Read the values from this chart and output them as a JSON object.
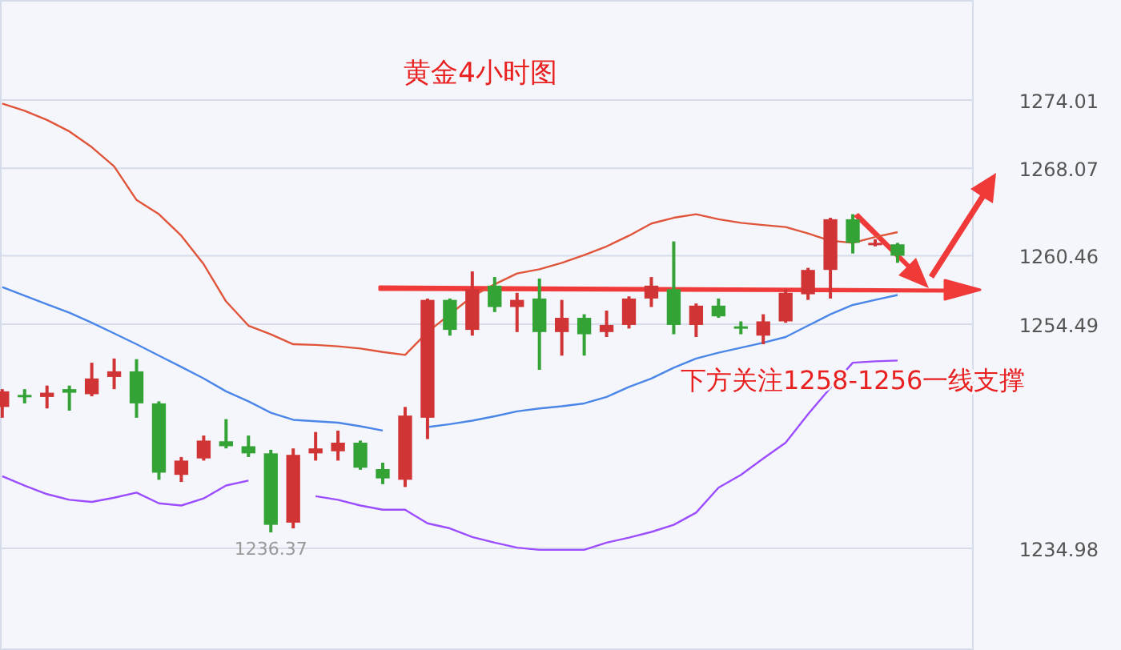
{
  "chart_data": {
    "type": "candlestick",
    "title": "黄金4小时图",
    "annotations": [
      "下方关注1258-1256一线支撑",
      {
        "text": "1236.37",
        "y": 1236.37
      }
    ],
    "categories": [
      null,
      null,
      null,
      null,
      null,
      null,
      null,
      null,
      null,
      null,
      null,
      null,
      null,
      null,
      null,
      null,
      null,
      null,
      null,
      null,
      null,
      null,
      null,
      null,
      null,
      null,
      null,
      null,
      null,
      null,
      null,
      null,
      null,
      null,
      null,
      null,
      null,
      null,
      null,
      null,
      null
    ],
    "ohlc": [
      [
        1247.29,
        1248.84,
        1246.35,
        1248.65
      ],
      [
        1248.34,
        1248.84,
        1247.6,
        1248.16
      ],
      [
        1248.16,
        1249.15,
        1247.16,
        1248.53
      ],
      [
        1248.84,
        1249.15,
        1246.97,
        1248.53
      ],
      [
        1248.4,
        1251.14,
        1248.22,
        1249.77
      ],
      [
        1249.9,
        1251.51,
        1248.84,
        1250.39
      ],
      [
        1250.39,
        1251.45,
        1246.35,
        1247.6
      ],
      [
        1247.6,
        1247.78,
        1240.95,
        1241.57
      ],
      [
        1241.38,
        1242.93,
        1240.76,
        1242.62
      ],
      [
        1242.81,
        1244.8,
        1242.62,
        1244.36
      ],
      [
        1244.3,
        1246.23,
        1243.68,
        1243.87
      ],
      [
        1243.87,
        1244.8,
        1242.93,
        1243.25
      ],
      [
        1243.25,
        1243.56,
        1236.37,
        1237.03
      ],
      [
        1237.22,
        1243.68,
        1236.72,
        1243.12
      ],
      [
        1243.25,
        1245.11,
        1242.62,
        1243.68
      ],
      [
        1243.43,
        1245.23,
        1242.62,
        1244.18
      ],
      [
        1244.18,
        1244.36,
        1241.82,
        1242.0
      ],
      [
        1241.88,
        1242.44,
        1240.57,
        1241.07
      ],
      [
        1240.95,
        1247.29,
        1240.32,
        1246.54
      ],
      [
        1246.35,
        1256.73,
        1244.49,
        1256.61
      ],
      [
        1256.61,
        1256.73,
        1253.5,
        1254.0
      ],
      [
        1254.0,
        1259.09,
        1253.5,
        1257.54
      ],
      [
        1257.85,
        1258.6,
        1255.55,
        1255.99
      ],
      [
        1255.99,
        1257.23,
        1253.81,
        1256.61
      ],
      [
        1256.73,
        1258.47,
        1250.52,
        1253.81
      ],
      [
        1253.81,
        1256.61,
        1251.76,
        1255.05
      ],
      [
        1255.05,
        1255.36,
        1251.76,
        1253.62
      ],
      [
        1253.81,
        1255.68,
        1253.38,
        1254.43
      ],
      [
        1254.43,
        1256.92,
        1254.12,
        1256.73
      ],
      [
        1256.73,
        1258.6,
        1255.99,
        1257.85
      ],
      [
        1257.54,
        1261.7,
        1253.62,
        1254.43
      ],
      [
        1254.43,
        1256.3,
        1253.38,
        1256.11
      ],
      [
        1256.11,
        1256.73,
        1255.05,
        1255.18
      ],
      [
        1254.31,
        1254.74,
        1253.62,
        1254.12
      ],
      [
        1253.5,
        1255.36,
        1252.75,
        1254.74
      ],
      [
        1254.74,
        1257.54,
        1254.62,
        1257.23
      ],
      [
        1257.1,
        1259.4,
        1256.61,
        1259.22
      ],
      [
        1259.22,
        1263.76,
        1256.73,
        1263.63
      ],
      [
        1263.63,
        1264.07,
        1260.65,
        1261.58
      ],
      [
        1261.45,
        1261.89,
        1261.27,
        1261.58
      ],
      [
        1261.45,
        1261.58,
        1259.84,
        1260.46
      ]
    ],
    "series": [
      {
        "type": "line",
        "color": "#e0543a",
        "values": [
          1273.7,
          1273.08,
          1272.27,
          1271.28,
          1269.91,
          1268.23,
          1265.31,
          1264.07,
          1262.2,
          1259.72,
          1256.48,
          1254.37,
          1253.62,
          1252.75,
          1252.69,
          1252.57,
          1252.38,
          1252.07,
          1251.82,
          1253.81,
          1255.36,
          1256.92,
          1257.97,
          1258.91,
          1259.28,
          1259.84,
          1260.52,
          1261.27,
          1262.2,
          1263.26,
          1263.76,
          1264.07,
          1263.63,
          1263.32,
          1263.13,
          1262.95,
          1262.39,
          1261.77,
          1261.58,
          1262.08,
          1262.51
        ]
      },
      {
        "type": "line",
        "color": "#4a86e8",
        "values": [
          1257.73,
          1256.98,
          1256.23,
          1255.49,
          1254.62,
          1253.69,
          1252.75,
          1251.76,
          1250.77,
          1249.77,
          1248.65,
          1247.78,
          1246.79,
          1246.17,
          1246.04,
          1245.92,
          1245.61,
          1245.23,
          null,
          1245.54,
          1245.79,
          1246.1,
          1246.48,
          1246.91,
          1247.16,
          1247.35,
          1247.6,
          1248.16,
          1249.03,
          1249.77,
          1250.7,
          1251.51,
          1252.01,
          1252.45,
          1252.88,
          1253.38,
          1254.37,
          1255.36,
          1256.17,
          1256.61,
          1257.04
        ]
      },
      {
        "type": "line",
        "color": "#9b4dff",
        "values": [
          1241.26,
          1240.45,
          1239.7,
          1239.21,
          1239.02,
          1239.39,
          1239.83,
          1238.9,
          1238.71,
          1239.33,
          1240.45,
          1240.88,
          null,
          null,
          1239.52,
          1239.21,
          1238.71,
          1238.34,
          1238.34,
          1237.16,
          1236.72,
          1235.97,
          1235.48,
          1235.04,
          1234.85,
          1234.85,
          1234.85,
          1235.48,
          1235.91,
          1236.41,
          1237.03,
          1238.09,
          1240.26,
          1241.38,
          1242.81,
          1244.18,
          1246.66,
          1248.96,
          1251.14,
          1251.26,
          1251.33
        ]
      }
    ],
    "ylim": [
      1226.13,
      1282.72
    ],
    "yticks": [
      1274.01,
      1268.07,
      1260.46,
      1254.49,
      1234.98
    ],
    "grid": "y",
    "tick_labels": "y"
  }
}
